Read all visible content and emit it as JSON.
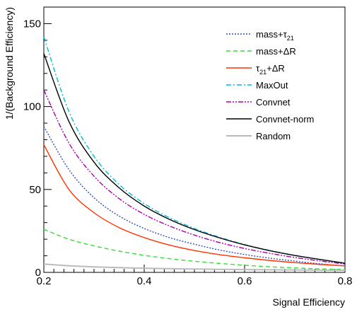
{
  "chart_data": {
    "type": "line",
    "xlabel": "Signal Efficiency",
    "ylabel": "1/(Background Efficiency)",
    "xlim": [
      0.2,
      0.8
    ],
    "ylim": [
      0,
      160
    ],
    "xticks": [
      0.2,
      0.4,
      0.6,
      0.8
    ],
    "xtick_labels": [
      "0.2",
      "0.4",
      "0.6",
      "0.8"
    ],
    "yticks": [
      0,
      50,
      100,
      150
    ],
    "ytick_labels": [
      "0",
      "50",
      "100",
      "150"
    ],
    "grid": false,
    "legend_position": "top-right",
    "x": [
      0.2,
      0.25,
      0.3,
      0.35,
      0.4,
      0.45,
      0.5,
      0.55,
      0.6,
      0.65,
      0.7,
      0.75,
      0.8
    ],
    "series": [
      {
        "name": "mass+τ21",
        "legend_base": "mass+τ",
        "legend_sub": "21",
        "color": "#3050c0",
        "dash": "2,2",
        "values": [
          88,
          62,
          45,
          34,
          26.5,
          21,
          17,
          13.5,
          10.8,
          8.6,
          6.8,
          5.2,
          3.8
        ]
      },
      {
        "name": "mass+ΔR",
        "legend_base": "mass+ΔR",
        "legend_sub": "",
        "color": "#33dd33",
        "dash": "6,4",
        "values": [
          26,
          20,
          16,
          12.8,
          10.3,
          8.3,
          6.7,
          5.4,
          4.3,
          3.4,
          2.7,
          2.1,
          1.7
        ]
      },
      {
        "name": "τ21+ΔR",
        "legend_base": "τ",
        "legend_sub": "21",
        "legend_suffix": "+ΔR",
        "color": "#ff3300",
        "dash": "",
        "values": [
          77,
          50,
          36,
          27,
          21,
          16.5,
          13.2,
          10.7,
          8.8,
          7.2,
          5.9,
          4.8,
          3.9
        ]
      },
      {
        "name": "MaxOut",
        "legend_base": "MaxOut",
        "legend_sub": "",
        "color": "#00bbdd",
        "dash": "7,3,2,3",
        "values": [
          142,
          97,
          70,
          53,
          41.5,
          33,
          26.5,
          21.2,
          16.8,
          13.2,
          10.3,
          7.8,
          5.6
        ]
      },
      {
        "name": "Convnet",
        "legend_base": "Convnet",
        "legend_sub": "",
        "color": "#aa00aa",
        "dash": "7,2,2,2,2,2",
        "values": [
          110,
          78,
          58,
          44.5,
          35,
          28,
          22.5,
          18,
          14.4,
          11.5,
          9,
          6.9,
          5
        ]
      },
      {
        "name": "Convnet-norm",
        "legend_base": "Convnet-norm",
        "legend_sub": "",
        "color": "#000000",
        "dash": "",
        "values": [
          132,
          91,
          66.5,
          51,
          40,
          32,
          25.8,
          20.8,
          16.6,
          13.1,
          10.2,
          7.8,
          5.5
        ]
      },
      {
        "name": "Random",
        "legend_base": "Random",
        "legend_sub": "",
        "color": "#bbbbbb",
        "dash": "",
        "values": [
          5,
          4,
          3.33,
          2.86,
          2.5,
          2.22,
          2,
          1.82,
          1.67,
          1.54,
          1.43,
          1.33,
          1.25
        ]
      }
    ]
  }
}
